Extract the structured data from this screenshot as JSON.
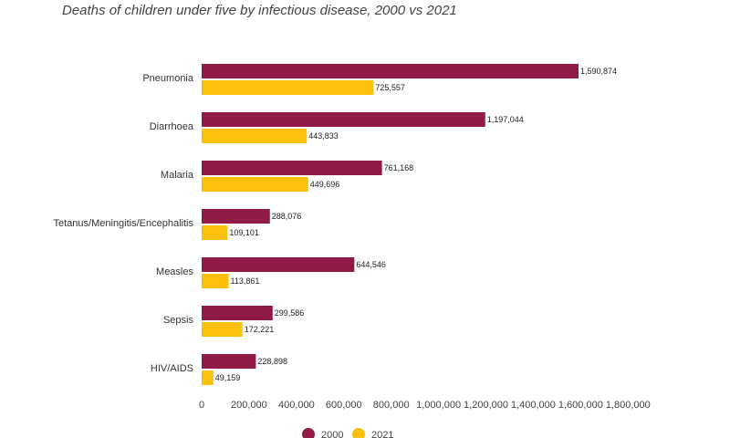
{
  "chart_data": {
    "type": "bar",
    "orientation": "horizontal",
    "title": "Deaths of children under five by infectious disease, 2000 vs 2021",
    "categories": [
      "Pneumonia",
      "Diarrhoea",
      "Malaria",
      "Tetanus/Meningitis/Encephalitis",
      "Measles",
      "Sepsis",
      "HIV/AIDS"
    ],
    "series": [
      {
        "name": "2000",
        "color": "#921a47",
        "values": [
          1590874,
          1197044,
          761168,
          288076,
          644546,
          299586,
          228898
        ]
      },
      {
        "name": "2021",
        "color": "#fbbf0c",
        "values": [
          725557,
          443833,
          449696,
          109101,
          113861,
          172221,
          49159
        ]
      }
    ],
    "xlim": [
      0,
      1800000
    ],
    "xticks": [
      0,
      200000,
      400000,
      600000,
      800000,
      1000000,
      1200000,
      1400000,
      1600000,
      1800000
    ],
    "grid": false,
    "legend_position": "bottom-center",
    "xlabel": "",
    "ylabel": ""
  }
}
